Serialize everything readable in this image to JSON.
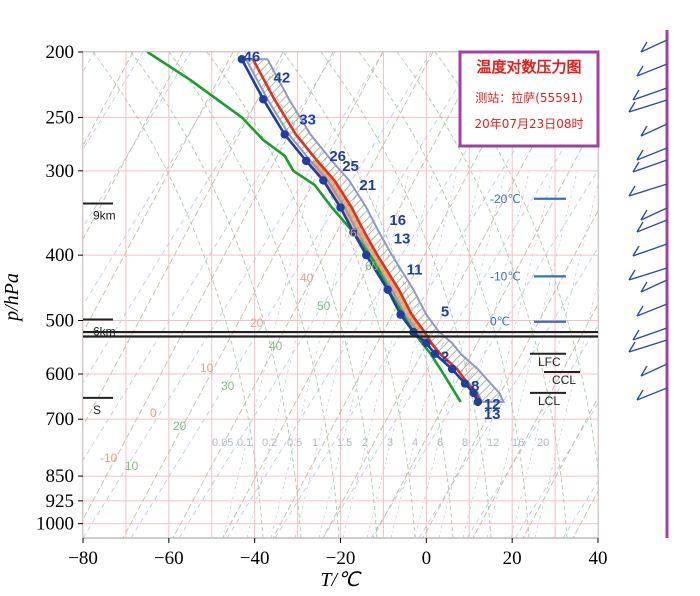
{
  "station_box": {
    "title": "温度对数压力图",
    "station_line": "测站：拉萨(55591)",
    "time_line": "20年07月23日08时"
  },
  "colors": {
    "temperature": "#1d3f9e",
    "dewpoint": "#1a9e2e",
    "parcel": "#e03020",
    "cape_fill": "#f0a060",
    "cin_hatch": "#8fb080",
    "wind_axis": "#a040a0",
    "station_border": "#a040a0"
  },
  "chart_data": {
    "type": "line",
    "xlabel": "T/℃",
    "ylabel": "p/hPa",
    "xlim": [
      -80,
      40
    ],
    "x_ticks": [
      -80,
      -60,
      -40,
      -20,
      0,
      20,
      40
    ],
    "y_scale": "log-pressure",
    "ylim": [
      200,
      1050
    ],
    "y_ticks": [
      200,
      250,
      300,
      400,
      500,
      600,
      700,
      850,
      925,
      1000
    ],
    "grid": true,
    "isotherm_labels": [
      {
        "text": "-20℃",
        "t": -20,
        "p": 330
      },
      {
        "text": "-10℃",
        "t": -10,
        "p": 430
      },
      {
        "text": "0℃",
        "t": 0,
        "p": 502
      }
    ],
    "height_marks": [
      {
        "text": "9km",
        "p": 340
      },
      {
        "text": "6km",
        "p": 505
      },
      {
        "text": "S",
        "p": 660
      }
    ],
    "levels": [
      {
        "text": "LFC",
        "p": 560
      },
      {
        "text": "CCL",
        "p": 596
      },
      {
        "text": "LCL",
        "p": 640
      }
    ],
    "mixing_ratio_labels": [
      "0.05",
      "0.1",
      "0.2",
      "0.5",
      "1",
      "1.5",
      "2",
      "3",
      "4",
      "6",
      "8",
      "12",
      "16",
      "20"
    ],
    "dry_adiabat_labels": [
      "-10",
      "0",
      "10",
      "20",
      "40",
      "60"
    ],
    "moist_adiabat_labels": [
      "10",
      "20",
      "30",
      "40",
      "50",
      "60"
    ],
    "series": [
      {
        "name": "T",
        "temperature_c": [
          12,
          11,
          9,
          6,
          2,
          0,
          -3,
          -6,
          -9,
          -14,
          -17,
          -20,
          -24,
          -28,
          -33,
          -38,
          -43
        ],
        "pressure_hpa": [
          660,
          640,
          620,
          590,
          560,
          540,
          520,
          490,
          450,
          400,
          370,
          340,
          310,
          290,
          265,
          235,
          205
        ]
      },
      {
        "name": "Td",
        "temperature_c": [
          8,
          4,
          1,
          -3,
          -8,
          -12,
          -17,
          -22,
          -26,
          -31,
          -33,
          -38,
          -43,
          -55,
          -65
        ],
        "pressure_hpa": [
          660,
          600,
          560,
          520,
          460,
          410,
          370,
          340,
          315,
          300,
          285,
          270,
          250,
          220,
          200
        ]
      }
    ],
    "point_labels": [
      {
        "text": "12",
        "t": 12,
        "p": 665
      },
      {
        "text": "13",
        "t": 12,
        "p": 688
      },
      {
        "text": "8",
        "t": 9,
        "p": 625
      },
      {
        "text": "2",
        "t": 2,
        "p": 565
      },
      {
        "text": "5",
        "t": 2,
        "p": 485
      },
      {
        "text": "11",
        "t": -6,
        "p": 420
      },
      {
        "text": "13",
        "t": -9,
        "p": 378
      },
      {
        "text": "16",
        "t": -10,
        "p": 355
      },
      {
        "text": "21",
        "t": -17,
        "p": 315
      },
      {
        "text": "25",
        "t": -21,
        "p": 295
      },
      {
        "text": "26",
        "t": -24,
        "p": 285
      },
      {
        "text": "33",
        "t": -31,
        "p": 252
      },
      {
        "text": "42",
        "t": -37,
        "p": 218
      },
      {
        "text": "46",
        "t": -44,
        "p": 203
      }
    ]
  }
}
